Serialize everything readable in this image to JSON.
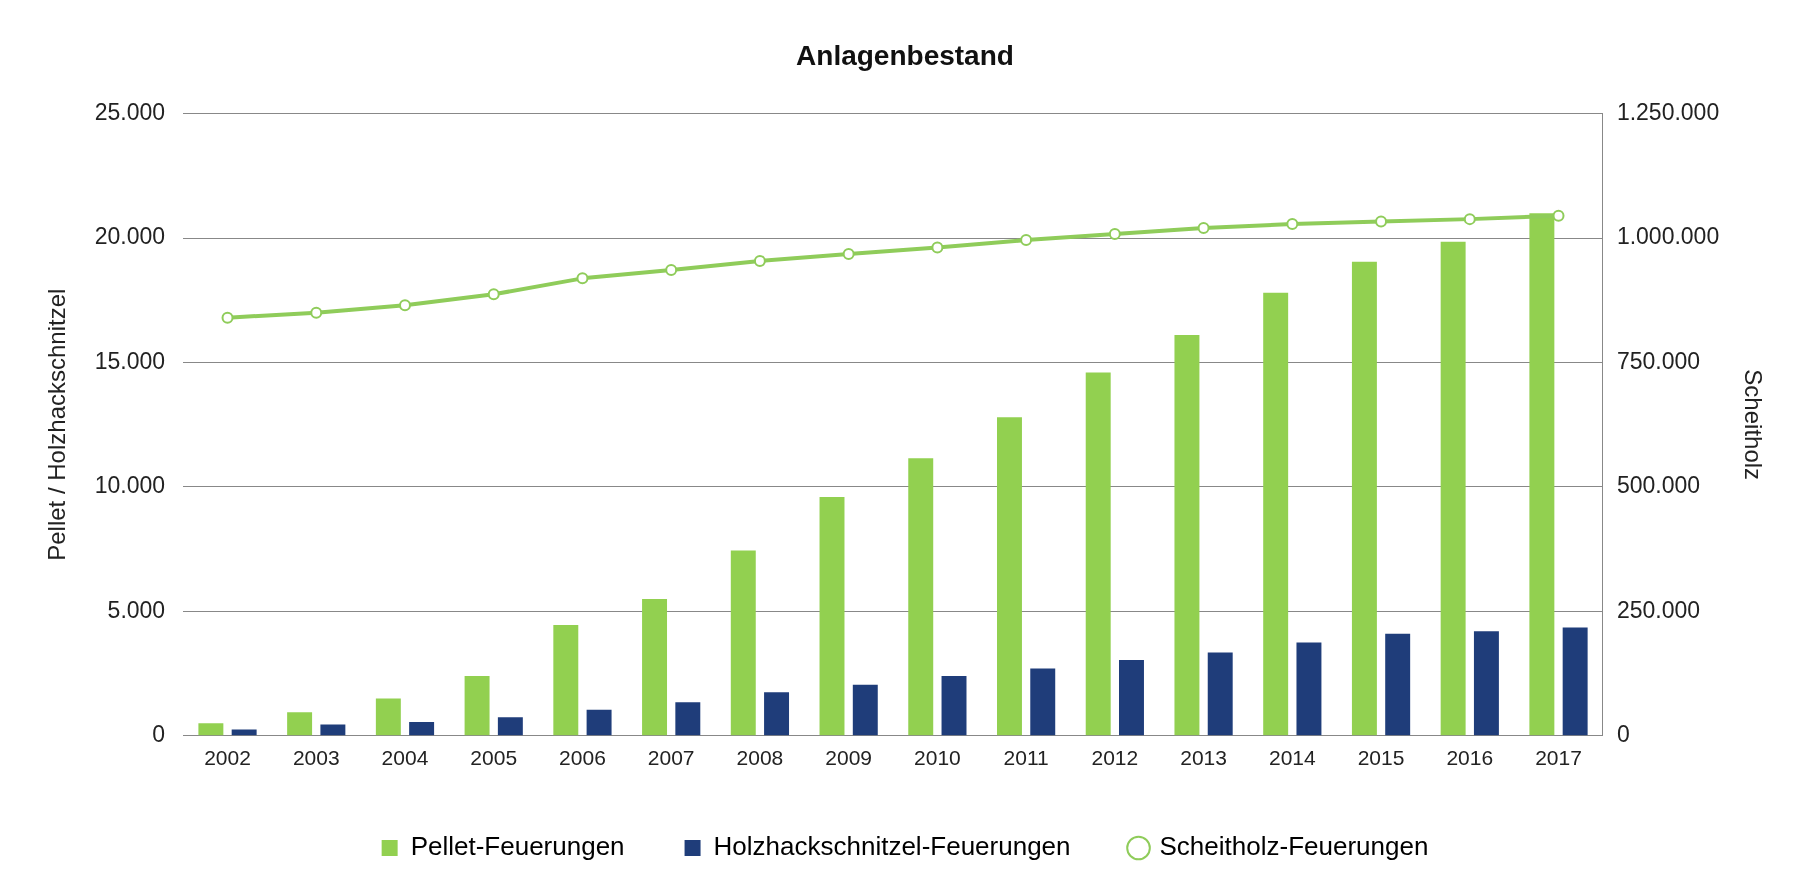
{
  "chart_data": {
    "type": "bar",
    "title": "Anlagenbestand",
    "ylabel": "Pellet / Holzhackschnitzel",
    "y2label": "Scheitholz",
    "categories": [
      "2002",
      "2003",
      "2004",
      "2005",
      "2006",
      "2007",
      "2008",
      "2009",
      "2010",
      "2011",
      "2012",
      "2013",
      "2014",
      "2015",
      "2016",
      "2017"
    ],
    "series": [
      {
        "name": "Pellet-Feuerungen",
        "color": "#92d050",
        "values": [
          500,
          950,
          1500,
          2400,
          4450,
          5500,
          7450,
          9600,
          11150,
          12800,
          14600,
          16100,
          17800,
          19050,
          19850,
          21000
        ]
      },
      {
        "name": "Holzhackschnitzel-Feuerungen",
        "color": "#1f3d7a",
        "values": [
          250,
          450,
          550,
          750,
          1050,
          1350,
          1750,
          2050,
          2400,
          2700,
          3050,
          3350,
          3750,
          4100,
          4200,
          4350
        ]
      },
      {
        "name": "Scheitholz-Feuerungen",
        "type": "line",
        "axis": "y2",
        "color": "#8fcc5a",
        "marker": "circle",
        "values": [
          840000,
          850000,
          865000,
          887000,
          919000,
          936000,
          954000,
          968000,
          981000,
          996000,
          1008000,
          1020000,
          1028000,
          1033000,
          1038000,
          1045000
        ]
      }
    ],
    "ylim": [
      0,
      25000
    ],
    "yticks": [
      {
        "value": 0,
        "label": "0"
      },
      {
        "value": 5000,
        "label": "5.000"
      },
      {
        "value": 10000,
        "label": "10.000"
      },
      {
        "value": 15000,
        "label": "15.000"
      },
      {
        "value": 20000,
        "label": "20.000"
      },
      {
        "value": 25000,
        "label": "25.000"
      }
    ],
    "y2lim": [
      0,
      1250000
    ],
    "y2ticks": [
      {
        "value": 0,
        "label": "0"
      },
      {
        "value": 250000,
        "label": "250.000"
      },
      {
        "value": 500000,
        "label": "500.000"
      },
      {
        "value": 750000,
        "label": "750.000"
      },
      {
        "value": 1000000,
        "label": "1.000.000"
      },
      {
        "value": 1250000,
        "label": "1.250.000"
      }
    ],
    "grid": "y",
    "legend": "bottom"
  }
}
